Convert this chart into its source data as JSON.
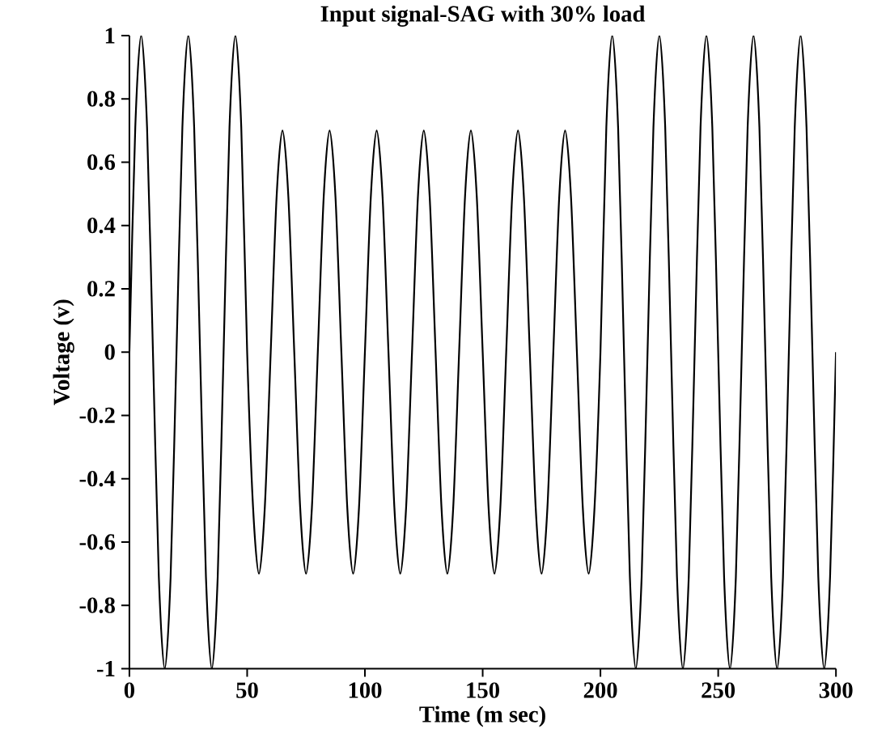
{
  "chart_data": {
    "type": "line",
    "title": "Input signal-SAG with 30% load",
    "xlabel": "Time (m sec)",
    "ylabel": "Voltage (v)",
    "x": [
      0,
      2.5,
      5,
      7.5,
      10,
      12.5,
      15,
      17.5,
      20,
      22.5,
      25,
      27.5,
      30,
      32.5,
      35,
      37.5,
      40,
      42.5,
      45,
      47.5,
      50,
      52.5,
      55,
      57.5,
      60,
      62.5,
      65,
      67.5,
      70,
      72.5,
      75,
      77.5,
      80,
      82.5,
      85,
      87.5,
      90,
      92.5,
      95,
      97.5,
      100,
      102.5,
      105,
      107.5,
      110,
      112.5,
      115,
      117.5,
      120,
      122.5,
      125,
      127.5,
      130,
      132.5,
      135,
      137.5,
      140,
      142.5,
      145,
      147.5,
      150,
      152.5,
      155,
      157.5,
      160,
      162.5,
      165,
      167.5,
      170,
      172.5,
      175,
      177.5,
      180,
      182.5,
      185,
      187.5,
      190,
      192.5,
      195,
      197.5,
      200,
      202.5,
      205,
      207.5,
      210,
      212.5,
      215,
      217.5,
      220,
      222.5,
      225,
      227.5,
      230,
      232.5,
      235,
      237.5,
      240,
      242.5,
      245,
      247.5,
      250,
      252.5,
      255,
      257.5,
      260,
      262.5,
      265,
      267.5,
      270,
      272.5,
      275,
      277.5,
      280,
      282.5,
      285,
      287.5,
      290,
      292.5,
      295,
      297.5,
      300
    ],
    "series": [
      {
        "color": "#000000",
        "values": [
          0,
          0.71,
          1,
          0.71,
          0,
          -0.71,
          -1,
          -0.71,
          0,
          0.71,
          1,
          0.71,
          0,
          -0.71,
          -1,
          -0.71,
          0,
          0.71,
          1,
          0.71,
          0,
          -0.49,
          -0.7,
          -0.49,
          0,
          0.49,
          0.7,
          0.49,
          0,
          -0.49,
          -0.7,
          -0.49,
          0,
          0.49,
          0.7,
          0.49,
          0,
          -0.49,
          -0.7,
          -0.49,
          0,
          0.49,
          0.7,
          0.49,
          0,
          -0.49,
          -0.7,
          -0.49,
          0,
          0.49,
          0.7,
          0.49,
          0,
          -0.49,
          -0.7,
          -0.49,
          0,
          0.49,
          0.7,
          0.49,
          0,
          -0.49,
          -0.7,
          -0.49,
          0,
          0.49,
          0.7,
          0.49,
          0,
          -0.49,
          -0.7,
          -0.49,
          0,
          0.49,
          0.7,
          0.49,
          0,
          -0.49,
          -0.7,
          -0.49,
          0,
          0.71,
          1,
          0.71,
          0,
          -0.71,
          -1,
          -0.71,
          0,
          0.71,
          1,
          0.71,
          0,
          -0.71,
          -1,
          -0.71,
          0,
          0.71,
          1,
          0.71,
          0,
          -0.71,
          -1,
          -0.71,
          0,
          0.71,
          1,
          0.71,
          0,
          -0.71,
          -1,
          -0.71,
          0,
          0.71,
          1,
          0.71,
          0,
          -0.71,
          -1,
          -0.71,
          0
        ]
      }
    ],
    "xlim": [
      0,
      300
    ],
    "ylim": [
      -1,
      1
    ],
    "xticks": [
      0,
      50,
      100,
      150,
      200,
      250,
      300
    ],
    "yticks": [
      -1,
      -0.8,
      -0.6,
      -0.4,
      -0.2,
      0,
      0.2,
      0.4,
      0.6,
      0.8,
      1
    ],
    "marker": "none",
    "line_style": "solid"
  }
}
